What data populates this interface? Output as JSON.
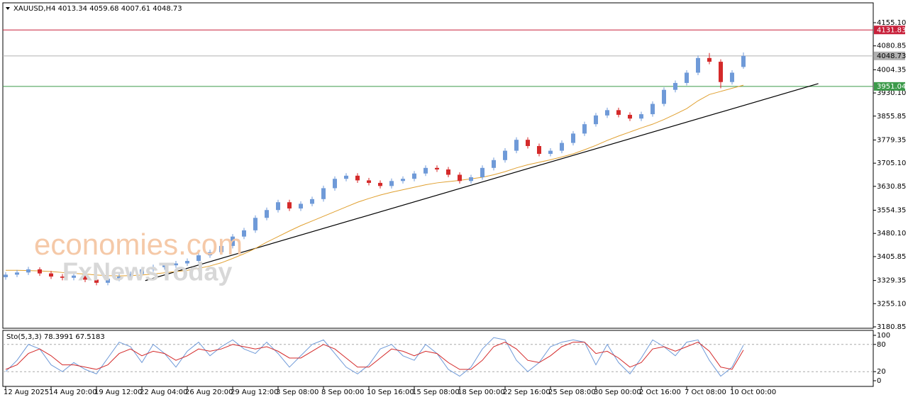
{
  "chart_data": [
    {
      "type": "candlestick",
      "title": "XAUUSD,H4",
      "categories": [
        "12 Aug 2025",
        null,
        null,
        null,
        "14 Aug 20:00",
        null,
        null,
        null,
        "19 Aug 12:00",
        null,
        null,
        null,
        "22 Aug 04:00",
        null,
        null,
        null,
        "26 Aug 20:00",
        null,
        null,
        null,
        "29 Aug 12:00",
        null,
        null,
        null,
        "3 Sep 08:00",
        null,
        null,
        null,
        "8 Sep 00:00",
        null,
        null,
        null,
        "10 Sep 16:00",
        null,
        null,
        null,
        "15 Sep 08:00",
        null,
        null,
        null,
        "18 Sep 00:00",
        null,
        null,
        null,
        "22 Sep 16:00",
        null,
        null,
        null,
        "25 Sep 08:00",
        null,
        null,
        null,
        "30 Sep 00:00",
        null,
        null,
        null,
        "2 Oct 16:00",
        null,
        null,
        null,
        "7 Oct 08:00",
        null,
        null,
        null,
        "10 Oct 00:00",
        null
      ],
      "open": [
        3340,
        3348,
        3355,
        3365,
        3352,
        3342,
        3338,
        3345,
        3332,
        3322,
        3335,
        3342,
        3350,
        3365,
        3372,
        3378,
        3384,
        3392,
        3410,
        3420,
        3440,
        3470,
        3490,
        3530,
        3555,
        3580,
        3560,
        3575,
        3590,
        3625,
        3655,
        3665,
        3650,
        3642,
        3632,
        3648,
        3655,
        3672,
        3690,
        3685,
        3668,
        3648,
        3660,
        3690,
        3715,
        3745,
        3780,
        3760,
        3735,
        3745,
        3770,
        3800,
        3830,
        3858,
        3875,
        3860,
        3848,
        3862,
        3895,
        3940,
        3962,
        3995,
        4042,
        4030,
        3965,
        4013.34
      ],
      "high": [
        3356,
        3363,
        3373,
        3372,
        3360,
        3350,
        3353,
        3353,
        3340,
        3343,
        3350,
        3358,
        3373,
        3380,
        3386,
        3392,
        3400,
        3418,
        3428,
        3448,
        3478,
        3498,
        3538,
        3563,
        3588,
        3588,
        3583,
        3598,
        3633,
        3663,
        3673,
        3673,
        3658,
        3650,
        3656,
        3663,
        3680,
        3698,
        3698,
        3693,
        3676,
        3668,
        3698,
        3723,
        3753,
        3788,
        3788,
        3768,
        3753,
        3778,
        3808,
        3838,
        3866,
        3883,
        3883,
        3868,
        3870,
        3903,
        3948,
        3970,
        4003,
        4050,
        4058,
        4038,
        4003,
        4059.68
      ],
      "low": [
        3332,
        3340,
        3347,
        3344,
        3334,
        3330,
        3330,
        3324,
        3314,
        3314,
        3327,
        3334,
        3342,
        3357,
        3364,
        3370,
        3376,
        3384,
        3402,
        3412,
        3432,
        3462,
        3482,
        3522,
        3547,
        3552,
        3552,
        3567,
        3582,
        3617,
        3647,
        3642,
        3634,
        3624,
        3624,
        3640,
        3647,
        3664,
        3677,
        3660,
        3640,
        3640,
        3652,
        3682,
        3707,
        3737,
        3752,
        3727,
        3727,
        3737,
        3762,
        3792,
        3822,
        3850,
        3852,
        3840,
        3840,
        3854,
        3887,
        3932,
        3954,
        3987,
        4022,
        3945,
        3957,
        4007.61
      ],
      "close": [
        3348,
        3355,
        3365,
        3352,
        3342,
        3338,
        3345,
        3332,
        3322,
        3335,
        3342,
        3350,
        3365,
        3372,
        3378,
        3384,
        3392,
        3410,
        3420,
        3440,
        3470,
        3490,
        3530,
        3555,
        3580,
        3560,
        3575,
        3590,
        3625,
        3655,
        3665,
        3650,
        3642,
        3632,
        3648,
        3655,
        3672,
        3690,
        3685,
        3668,
        3648,
        3660,
        3690,
        3715,
        3745,
        3780,
        3760,
        3735,
        3745,
        3770,
        3800,
        3830,
        3858,
        3875,
        3860,
        3848,
        3862,
        3895,
        3940,
        3962,
        3995,
        4042,
        4030,
        3965,
        3995,
        4048.73
      ],
      "up_color": "#6f9ad8",
      "down_color": "#d42a2a",
      "ma": {
        "color": "#e0a030",
        "values": [
          3362,
          3362,
          3361,
          3360,
          3358,
          3355,
          3352,
          3350,
          3347,
          3345,
          3344,
          3345,
          3347,
          3350,
          3354,
          3358,
          3362,
          3368,
          3376,
          3386,
          3400,
          3415,
          3432,
          3452,
          3470,
          3488,
          3505,
          3520,
          3535,
          3550,
          3565,
          3580,
          3592,
          3603,
          3612,
          3620,
          3628,
          3636,
          3642,
          3646,
          3650,
          3655,
          3660,
          3668,
          3678,
          3690,
          3700,
          3708,
          3716,
          3725,
          3735,
          3748,
          3762,
          3778,
          3792,
          3805,
          3818,
          3830,
          3845,
          3862,
          3880,
          3905,
          3925,
          3935,
          3945,
          3955
        ]
      },
      "trendline": {
        "color": "#000000",
        "x": [
          12.3,
          71.6
        ],
        "values": [
          3329,
          3960
        ]
      },
      "levels": [
        {
          "value": 4131.83,
          "color": "#c8203a"
        },
        {
          "value": 4048.73,
          "color": "#b0b0b0"
        },
        {
          "value": 3951.04,
          "color": "#3c9a4a"
        }
      ],
      "ylim": [
        3176.3,
        4218.7
      ],
      "yticks": [
        {
          "value": 3180.85,
          "label": "3180.85"
        },
        {
          "value": 3255.1,
          "label": "3255.10"
        },
        {
          "value": 3329.35,
          "label": "3329.35"
        },
        {
          "value": 3405.85,
          "label": "3405.85"
        },
        {
          "value": 3480.1,
          "label": "3480.10"
        },
        {
          "value": 3554.35,
          "label": "3554.35"
        },
        {
          "value": 3630.85,
          "label": "3630.85"
        },
        {
          "value": 3705.1,
          "label": "3705.10"
        },
        {
          "value": 3779.35,
          "label": "3779.35"
        },
        {
          "value": 3855.85,
          "label": "3855.85"
        },
        {
          "value": 3930.1,
          "label": "3930.10"
        },
        {
          "value": 4004.35,
          "label": "4004.35"
        },
        {
          "value": 4080.85,
          "label": "4080.85"
        },
        {
          "value": 4155.1,
          "label": "4155.10"
        }
      ],
      "watermark": [
        "economies.com",
        "FxNewsToday"
      ]
    },
    {
      "type": "line",
      "title": "Sto(5,3,3)",
      "series": [
        {
          "color": "#6f9ad8",
          "values": [
            20,
            45,
            80,
            70,
            35,
            20,
            40,
            25,
            15,
            50,
            85,
            75,
            40,
            80,
            60,
            30,
            65,
            85,
            55,
            75,
            90,
            70,
            60,
            85,
            60,
            30,
            55,
            80,
            90,
            60,
            30,
            15,
            35,
            70,
            80,
            55,
            45,
            80,
            60,
            25,
            10,
            30,
            70,
            95,
            90,
            45,
            20,
            40,
            75,
            85,
            90,
            85,
            35,
            80,
            40,
            15,
            50,
            90,
            75,
            55,
            85,
            90,
            45,
            10,
            30,
            78.3991
          ]
        },
        {
          "color": "#d42a2a",
          "values": [
            25,
            35,
            60,
            70,
            55,
            35,
            35,
            30,
            25,
            35,
            60,
            70,
            55,
            65,
            60,
            45,
            55,
            70,
            65,
            70,
            80,
            75,
            70,
            75,
            65,
            50,
            50,
            65,
            80,
            70,
            50,
            30,
            30,
            50,
            70,
            65,
            55,
            65,
            60,
            40,
            25,
            25,
            45,
            75,
            85,
            70,
            45,
            40,
            55,
            75,
            85,
            85,
            60,
            65,
            50,
            30,
            40,
            70,
            75,
            65,
            75,
            85,
            65,
            30,
            25,
            67.5183
          ]
        }
      ],
      "levels": [
        20,
        80
      ],
      "ylim": [
        -12.5,
        110.9
      ],
      "yticks": [
        0,
        20,
        80,
        100
      ]
    }
  ]
}
